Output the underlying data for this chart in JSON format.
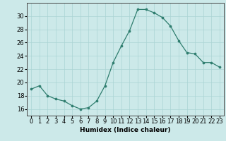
{
  "x": [
    0,
    1,
    2,
    3,
    4,
    5,
    6,
    7,
    8,
    9,
    10,
    11,
    12,
    13,
    14,
    15,
    16,
    17,
    18,
    19,
    20,
    21,
    22,
    23
  ],
  "y": [
    19.0,
    19.5,
    18.0,
    17.5,
    17.2,
    16.5,
    16.0,
    16.2,
    17.2,
    19.5,
    23.0,
    25.5,
    27.8,
    31.0,
    31.0,
    30.5,
    29.8,
    28.5,
    26.3,
    24.5,
    24.3,
    23.0,
    23.0,
    22.3
  ],
  "line_color": "#2e7d6e",
  "marker_color": "#2e7d6e",
  "bg_color": "#cce9e9",
  "grid_color": "#aad4d4",
  "xlabel": "Humidex (Indice chaleur)",
  "xlim": [
    -0.5,
    23.5
  ],
  "ylim": [
    15.0,
    32.0
  ],
  "yticks": [
    16,
    18,
    20,
    22,
    24,
    26,
    28,
    30
  ],
  "xticks": [
    0,
    1,
    2,
    3,
    4,
    5,
    6,
    7,
    8,
    9,
    10,
    11,
    12,
    13,
    14,
    15,
    16,
    17,
    18,
    19,
    20,
    21,
    22,
    23
  ],
  "label_fontsize": 6.5,
  "tick_fontsize": 6.0
}
